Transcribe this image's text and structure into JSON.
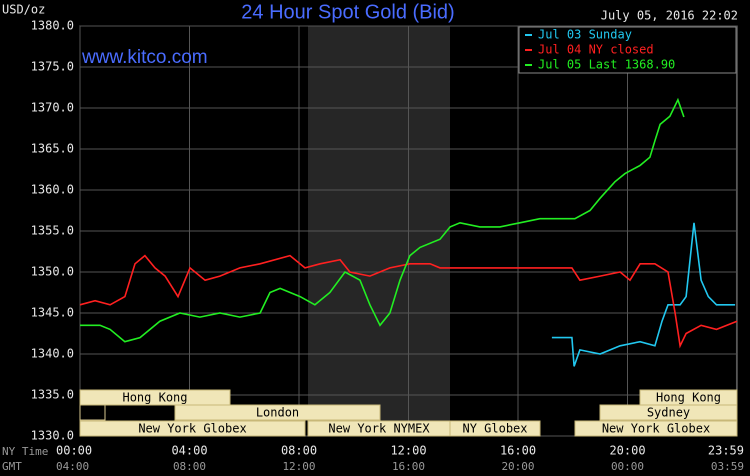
{
  "chart_data": {
    "type": "line",
    "title": "24 Hour Spot Gold (Bid)",
    "timestamp": "July 05, 2016 22:02",
    "y_label": "USD/oz",
    "watermark": "www.kitco.com",
    "x_label": "NY Time",
    "x2_label": "GMT",
    "ylim": [
      1330,
      1380
    ],
    "yticks": [
      {
        "value": 1330,
        "label": "1330.0"
      },
      {
        "value": 1335,
        "label": "1335.0"
      },
      {
        "value": 1340,
        "label": "1340.0"
      },
      {
        "value": 1345,
        "label": "1345.0"
      },
      {
        "value": 1350,
        "label": "1350.0"
      },
      {
        "value": 1355,
        "label": "1355.0"
      },
      {
        "value": 1360,
        "label": "1360.0"
      },
      {
        "value": 1365,
        "label": "1365.0"
      },
      {
        "value": 1370,
        "label": "1370.0"
      },
      {
        "value": 1375,
        "label": "1375.0"
      },
      {
        "value": 1380,
        "label": "1380.0"
      }
    ],
    "xlim": [
      0,
      24
    ],
    "xticks": [
      {
        "value": 0,
        "label": "00:00"
      },
      {
        "value": 4,
        "label": "04:00"
      },
      {
        "value": 8,
        "label": "08:00"
      },
      {
        "value": 12,
        "label": "12:00"
      },
      {
        "value": 16,
        "label": "16:00"
      },
      {
        "value": 20,
        "label": "20:00"
      },
      {
        "value": 23.98,
        "label": "23:59"
      }
    ],
    "x2ticks": [
      {
        "value": 0,
        "label": "04:00"
      },
      {
        "value": 4,
        "label": "08:00"
      },
      {
        "value": 8,
        "label": "12:00"
      },
      {
        "value": 12,
        "label": "16:00"
      },
      {
        "value": 16,
        "label": "20:00"
      },
      {
        "value": 20,
        "label": "00:00"
      },
      {
        "value": 23.98,
        "label": "03:59"
      }
    ],
    "grid": true,
    "legend": "upper right",
    "sessions": [
      "Hong Kong",
      "London",
      "New York Globex",
      "New York NYMEX",
      "NY Globex",
      "Sydney",
      "Hong Kong",
      "New York Globex"
    ],
    "series": [
      {
        "name": "Jul 03 Sunday",
        "color": "#22c8f0",
        "x": [
          17.24,
          17.97,
          18.05,
          18.26,
          19.0,
          19.73,
          20.46,
          21.0,
          21.26,
          21.48,
          21.92,
          22.14,
          22.43,
          22.69,
          22.95,
          23.25,
          23.93
        ],
        "values": [
          1342,
          1342,
          1338.5,
          1340.5,
          1340,
          1341,
          1341.5,
          1341,
          1344,
          1346,
          1346,
          1347,
          1356,
          1349,
          1347,
          1346,
          1346
        ]
      },
      {
        "name": "Jul 04 NY closed",
        "color": "#ff2020",
        "x": [
          0,
          0.55,
          1.1,
          1.64,
          2.01,
          2.37,
          2.74,
          3.11,
          3.58,
          4.02,
          4.57,
          5.11,
          5.84,
          6.58,
          7.67,
          8.22,
          8.77,
          9.5,
          9.86,
          10.59,
          11.32,
          12.05,
          12.79,
          13.15,
          17.97,
          18.26,
          19.0,
          19.73,
          20.09,
          20.46,
          21.0,
          21.48,
          21.74,
          21.92,
          22.14,
          22.69,
          23.25,
          24.0
        ],
        "values": [
          1346,
          1346.5,
          1346,
          1347,
          1351,
          1352,
          1350.5,
          1349.5,
          1347,
          1350.5,
          1349,
          1349.5,
          1350.5,
          1351,
          1352,
          1350.5,
          1351,
          1351.5,
          1350,
          1349.5,
          1350.5,
          1351,
          1351,
          1350.5,
          1350.5,
          1349,
          1349.5,
          1350,
          1349,
          1351,
          1351,
          1350,
          1345,
          1341,
          1342.5,
          1343.5,
          1343,
          1344
        ]
      },
      {
        "name": "Jul 05 Last 1368.90",
        "color": "#22ee22",
        "x": [
          0,
          0.73,
          1.1,
          1.64,
          2.19,
          2.92,
          3.65,
          4.38,
          5.11,
          5.84,
          6.58,
          6.94,
          7.31,
          8.04,
          8.58,
          9.13,
          9.68,
          10.23,
          10.59,
          10.96,
          11.32,
          11.69,
          12.05,
          12.42,
          13.15,
          13.52,
          13.88,
          14.61,
          15.34,
          16.07,
          16.8,
          18.08,
          18.63,
          19.0,
          19.54,
          19.91,
          20.46,
          20.82,
          21.0,
          21.19,
          21.55,
          21.84,
          22.06
        ],
        "values": [
          1343.5,
          1343.5,
          1343,
          1341.5,
          1342,
          1344,
          1345,
          1344.5,
          1345,
          1344.5,
          1345,
          1347.5,
          1348,
          1347,
          1346,
          1347.5,
          1350,
          1349,
          1346,
          1343.5,
          1345,
          1349,
          1352,
          1353,
          1354,
          1355.5,
          1356,
          1355.5,
          1355.5,
          1356,
          1356.5,
          1356.5,
          1357.5,
          1359,
          1361,
          1362,
          1363,
          1364,
          1366,
          1368,
          1369,
          1371,
          1368.9
        ]
      }
    ]
  }
}
